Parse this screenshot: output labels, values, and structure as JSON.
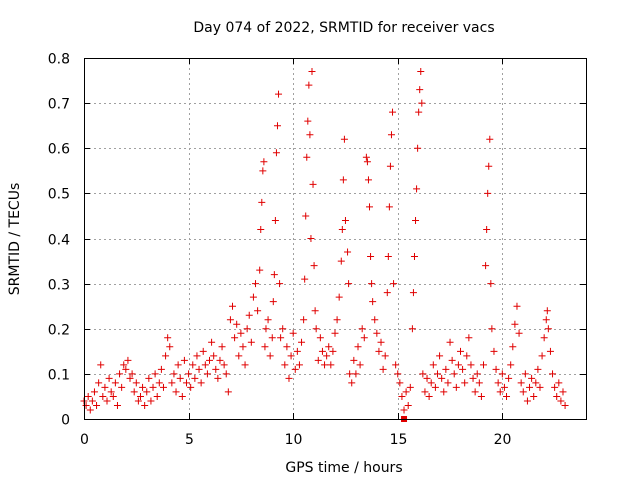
{
  "chart_data": {
    "type": "scatter",
    "title": "Day 074 of 2022, SRMTID for receiver vacs",
    "xlabel": "GPS time / hours",
    "ylabel": "SRMTID / TECUs",
    "xlim": [
      0,
      24
    ],
    "ylim": [
      0,
      0.8
    ],
    "grid": true,
    "marker": "plus",
    "color": "#e00000",
    "x_ticks": [
      {
        "value": 0,
        "label": "0"
      },
      {
        "value": 5,
        "label": "5"
      },
      {
        "value": 10,
        "label": "10"
      },
      {
        "value": 15,
        "label": "15"
      },
      {
        "value": 20,
        "label": "20"
      }
    ],
    "y_ticks": [
      {
        "value": 0,
        "label": "0"
      },
      {
        "value": 0.1,
        "label": "0.1"
      },
      {
        "value": 0.2,
        "label": "0.2"
      },
      {
        "value": 0.3,
        "label": "0.3"
      },
      {
        "value": 0.4,
        "label": "0.4"
      },
      {
        "value": 0.5,
        "label": "0.5"
      },
      {
        "value": 0.6,
        "label": "0.6"
      },
      {
        "value": 0.7,
        "label": "0.7"
      },
      {
        "value": 0.8,
        "label": "0.8"
      }
    ],
    "series": [
      {
        "name": "SRMTID",
        "points": [
          [
            0.0,
            0.04
          ],
          [
            0.1,
            0.03
          ],
          [
            0.2,
            0.05
          ],
          [
            0.3,
            0.02
          ],
          [
            0.4,
            0.04
          ],
          [
            0.5,
            0.06
          ],
          [
            0.6,
            0.03
          ],
          [
            0.7,
            0.08
          ],
          [
            0.8,
            0.12
          ],
          [
            0.9,
            0.05
          ],
          [
            1.0,
            0.07
          ],
          [
            1.1,
            0.04
          ],
          [
            1.2,
            0.09
          ],
          [
            1.3,
            0.06
          ],
          [
            1.4,
            0.05
          ],
          [
            1.5,
            0.08
          ],
          [
            1.6,
            0.03
          ],
          [
            1.7,
            0.1
          ],
          [
            1.8,
            0.07
          ],
          [
            1.9,
            0.12
          ],
          [
            2.0,
            0.11
          ],
          [
            2.1,
            0.13
          ],
          [
            2.2,
            0.09
          ],
          [
            2.3,
            0.1
          ],
          [
            2.4,
            0.06
          ],
          [
            2.5,
            0.08
          ],
          [
            2.6,
            0.04
          ],
          [
            2.7,
            0.05
          ],
          [
            2.8,
            0.07
          ],
          [
            2.9,
            0.03
          ],
          [
            3.0,
            0.06
          ],
          [
            3.1,
            0.09
          ],
          [
            3.2,
            0.04
          ],
          [
            3.3,
            0.07
          ],
          [
            3.4,
            0.1
          ],
          [
            3.5,
            0.05
          ],
          [
            3.6,
            0.08
          ],
          [
            3.7,
            0.11
          ],
          [
            3.8,
            0.07
          ],
          [
            3.9,
            0.14
          ],
          [
            4.0,
            0.18
          ],
          [
            4.1,
            0.16
          ],
          [
            4.2,
            0.08
          ],
          [
            4.3,
            0.1
          ],
          [
            4.4,
            0.06
          ],
          [
            4.5,
            0.12
          ],
          [
            4.6,
            0.09
          ],
          [
            4.7,
            0.05
          ],
          [
            4.8,
            0.13
          ],
          [
            4.9,
            0.08
          ],
          [
            5.0,
            0.1
          ],
          [
            5.1,
            0.07
          ],
          [
            5.2,
            0.12
          ],
          [
            5.3,
            0.09
          ],
          [
            5.4,
            0.14
          ],
          [
            5.5,
            0.11
          ],
          [
            5.6,
            0.08
          ],
          [
            5.7,
            0.15
          ],
          [
            5.8,
            0.12
          ],
          [
            5.9,
            0.1
          ],
          [
            6.0,
            0.13
          ],
          [
            6.1,
            0.17
          ],
          [
            6.2,
            0.14
          ],
          [
            6.3,
            0.11
          ],
          [
            6.4,
            0.09
          ],
          [
            6.5,
            0.13
          ],
          [
            6.6,
            0.16
          ],
          [
            6.7,
            0.12
          ],
          [
            6.8,
            0.1
          ],
          [
            6.9,
            0.06
          ],
          [
            7.0,
            0.22
          ],
          [
            7.1,
            0.25
          ],
          [
            7.2,
            0.18
          ],
          [
            7.3,
            0.21
          ],
          [
            7.4,
            0.14
          ],
          [
            7.5,
            0.19
          ],
          [
            7.6,
            0.16
          ],
          [
            7.7,
            0.12
          ],
          [
            7.8,
            0.2
          ],
          [
            7.9,
            0.23
          ],
          [
            8.0,
            0.17
          ],
          [
            8.1,
            0.27
          ],
          [
            8.2,
            0.3
          ],
          [
            8.3,
            0.24
          ],
          [
            8.4,
            0.33
          ],
          [
            8.45,
            0.42
          ],
          [
            8.5,
            0.48
          ],
          [
            8.55,
            0.55
          ],
          [
            8.6,
            0.57
          ],
          [
            8.65,
            0.16
          ],
          [
            8.7,
            0.2
          ],
          [
            8.8,
            0.22
          ],
          [
            8.9,
            0.14
          ],
          [
            9.0,
            0.18
          ],
          [
            9.05,
            0.26
          ],
          [
            9.1,
            0.32
          ],
          [
            9.15,
            0.44
          ],
          [
            9.2,
            0.59
          ],
          [
            9.25,
            0.65
          ],
          [
            9.3,
            0.72
          ],
          [
            9.35,
            0.3
          ],
          [
            9.4,
            0.18
          ],
          [
            9.5,
            0.2
          ],
          [
            9.6,
            0.12
          ],
          [
            9.7,
            0.16
          ],
          [
            9.8,
            0.09
          ],
          [
            9.9,
            0.14
          ],
          [
            10.0,
            0.19
          ],
          [
            10.1,
            0.11
          ],
          [
            10.2,
            0.15
          ],
          [
            10.3,
            0.12
          ],
          [
            10.4,
            0.17
          ],
          [
            10.5,
            0.22
          ],
          [
            10.55,
            0.31
          ],
          [
            10.6,
            0.45
          ],
          [
            10.65,
            0.58
          ],
          [
            10.7,
            0.66
          ],
          [
            10.75,
            0.74
          ],
          [
            10.8,
            0.63
          ],
          [
            10.85,
            0.4
          ],
          [
            10.9,
            0.77
          ],
          [
            10.95,
            0.52
          ],
          [
            11.0,
            0.34
          ],
          [
            11.05,
            0.24
          ],
          [
            11.1,
            0.2
          ],
          [
            11.2,
            0.13
          ],
          [
            11.3,
            0.18
          ],
          [
            11.4,
            0.15
          ],
          [
            11.5,
            0.12
          ],
          [
            11.6,
            0.14
          ],
          [
            11.7,
            0.16
          ],
          [
            11.8,
            0.12
          ],
          [
            11.9,
            0.15
          ],
          [
            12.0,
            0.19
          ],
          [
            12.1,
            0.22
          ],
          [
            12.2,
            0.27
          ],
          [
            12.3,
            0.35
          ],
          [
            12.35,
            0.42
          ],
          [
            12.4,
            0.53
          ],
          [
            12.45,
            0.62
          ],
          [
            12.5,
            0.44
          ],
          [
            12.6,
            0.37
          ],
          [
            12.65,
            0.3
          ],
          [
            12.7,
            0.1
          ],
          [
            12.8,
            0.08
          ],
          [
            12.9,
            0.13
          ],
          [
            13.0,
            0.1
          ],
          [
            13.1,
            0.16
          ],
          [
            13.2,
            0.12
          ],
          [
            13.3,
            0.2
          ],
          [
            13.4,
            0.18
          ],
          [
            13.5,
            0.58
          ],
          [
            13.55,
            0.57
          ],
          [
            13.6,
            0.53
          ],
          [
            13.65,
            0.47
          ],
          [
            13.7,
            0.36
          ],
          [
            13.75,
            0.3
          ],
          [
            13.8,
            0.26
          ],
          [
            13.9,
            0.22
          ],
          [
            14.0,
            0.19
          ],
          [
            14.1,
            0.15
          ],
          [
            14.2,
            0.17
          ],
          [
            14.3,
            0.11
          ],
          [
            14.4,
            0.14
          ],
          [
            14.5,
            0.28
          ],
          [
            14.55,
            0.36
          ],
          [
            14.6,
            0.47
          ],
          [
            14.65,
            0.56
          ],
          [
            14.7,
            0.63
          ],
          [
            14.75,
            0.68
          ],
          [
            14.8,
            0.3
          ],
          [
            14.9,
            0.12
          ],
          [
            15.0,
            0.1
          ],
          [
            15.1,
            0.08
          ],
          [
            15.2,
            0.05
          ],
          [
            15.3,
            0.02
          ],
          [
            15.4,
            0.06
          ],
          [
            15.5,
            0.03
          ],
          [
            15.6,
            0.07
          ],
          [
            15.7,
            0.2
          ],
          [
            15.75,
            0.28
          ],
          [
            15.8,
            0.36
          ],
          [
            15.85,
            0.44
          ],
          [
            15.9,
            0.51
          ],
          [
            15.95,
            0.6
          ],
          [
            16.0,
            0.68
          ],
          [
            16.05,
            0.73
          ],
          [
            16.1,
            0.77
          ],
          [
            16.15,
            0.7
          ],
          [
            16.2,
            0.1
          ],
          [
            16.3,
            0.06
          ],
          [
            16.4,
            0.09
          ],
          [
            16.5,
            0.05
          ],
          [
            16.6,
            0.08
          ],
          [
            16.7,
            0.12
          ],
          [
            16.8,
            0.07
          ],
          [
            16.9,
            0.1
          ],
          [
            17.0,
            0.14
          ],
          [
            17.1,
            0.09
          ],
          [
            17.2,
            0.06
          ],
          [
            17.3,
            0.11
          ],
          [
            17.4,
            0.08
          ],
          [
            17.5,
            0.17
          ],
          [
            17.6,
            0.13
          ],
          [
            17.7,
            0.1
          ],
          [
            17.8,
            0.07
          ],
          [
            17.9,
            0.12
          ],
          [
            18.0,
            0.15
          ],
          [
            18.1,
            0.11
          ],
          [
            18.2,
            0.08
          ],
          [
            18.3,
            0.14
          ],
          [
            18.4,
            0.18
          ],
          [
            18.5,
            0.12
          ],
          [
            18.6,
            0.09
          ],
          [
            18.7,
            0.06
          ],
          [
            18.8,
            0.1
          ],
          [
            18.9,
            0.08
          ],
          [
            19.0,
            0.05
          ],
          [
            19.1,
            0.12
          ],
          [
            19.2,
            0.34
          ],
          [
            19.25,
            0.42
          ],
          [
            19.3,
            0.5
          ],
          [
            19.35,
            0.56
          ],
          [
            19.4,
            0.62
          ],
          [
            19.45,
            0.3
          ],
          [
            19.5,
            0.2
          ],
          [
            19.6,
            0.15
          ],
          [
            19.7,
            0.11
          ],
          [
            19.8,
            0.08
          ],
          [
            19.9,
            0.06
          ],
          [
            20.0,
            0.1
          ],
          [
            20.1,
            0.07
          ],
          [
            20.2,
            0.05
          ],
          [
            20.3,
            0.09
          ],
          [
            20.4,
            0.12
          ],
          [
            20.5,
            0.16
          ],
          [
            20.6,
            0.21
          ],
          [
            20.7,
            0.25
          ],
          [
            20.8,
            0.19
          ],
          [
            20.9,
            0.08
          ],
          [
            21.0,
            0.06
          ],
          [
            21.1,
            0.1
          ],
          [
            21.2,
            0.04
          ],
          [
            21.3,
            0.07
          ],
          [
            21.4,
            0.09
          ],
          [
            21.5,
            0.05
          ],
          [
            21.6,
            0.08
          ],
          [
            21.7,
            0.11
          ],
          [
            21.8,
            0.07
          ],
          [
            21.9,
            0.14
          ],
          [
            22.0,
            0.18
          ],
          [
            22.1,
            0.22
          ],
          [
            22.15,
            0.24
          ],
          [
            22.2,
            0.2
          ],
          [
            22.3,
            0.15
          ],
          [
            22.4,
            0.1
          ],
          [
            22.5,
            0.07
          ],
          [
            22.6,
            0.05
          ],
          [
            22.7,
            0.08
          ],
          [
            22.8,
            0.04
          ],
          [
            22.9,
            0.06
          ],
          [
            23.0,
            0.03
          ]
        ]
      },
      {
        "name": "filled marker",
        "marker": "square",
        "points": [
          [
            15.3,
            0.0
          ]
        ]
      }
    ]
  }
}
